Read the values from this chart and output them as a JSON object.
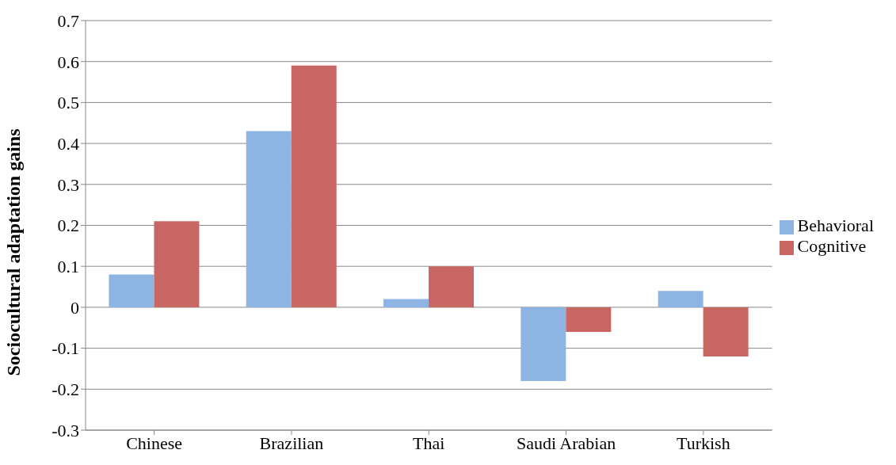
{
  "chart_data": {
    "type": "bar",
    "ylabel": "Sociocultural adaptation gains",
    "categories": [
      "Chinese",
      "Brazilian",
      "Thai",
      "Saudi Arabian",
      "Turkish"
    ],
    "series": [
      {
        "name": "Behavioral",
        "color": "#8eb4e3",
        "values": [
          0.08,
          0.43,
          0.02,
          -0.18,
          0.04
        ]
      },
      {
        "name": "Cognitive",
        "color": "#c86664",
        "values": [
          0.21,
          0.59,
          0.1,
          -0.06,
          -0.12
        ]
      }
    ],
    "ylim": [
      -0.3,
      0.7
    ],
    "yticks": [
      -0.3,
      -0.2,
      -0.1,
      0,
      0.1,
      0.2,
      0.3,
      0.4,
      0.5,
      0.6,
      0.7
    ],
    "grid": "y",
    "legend": "right"
  }
}
